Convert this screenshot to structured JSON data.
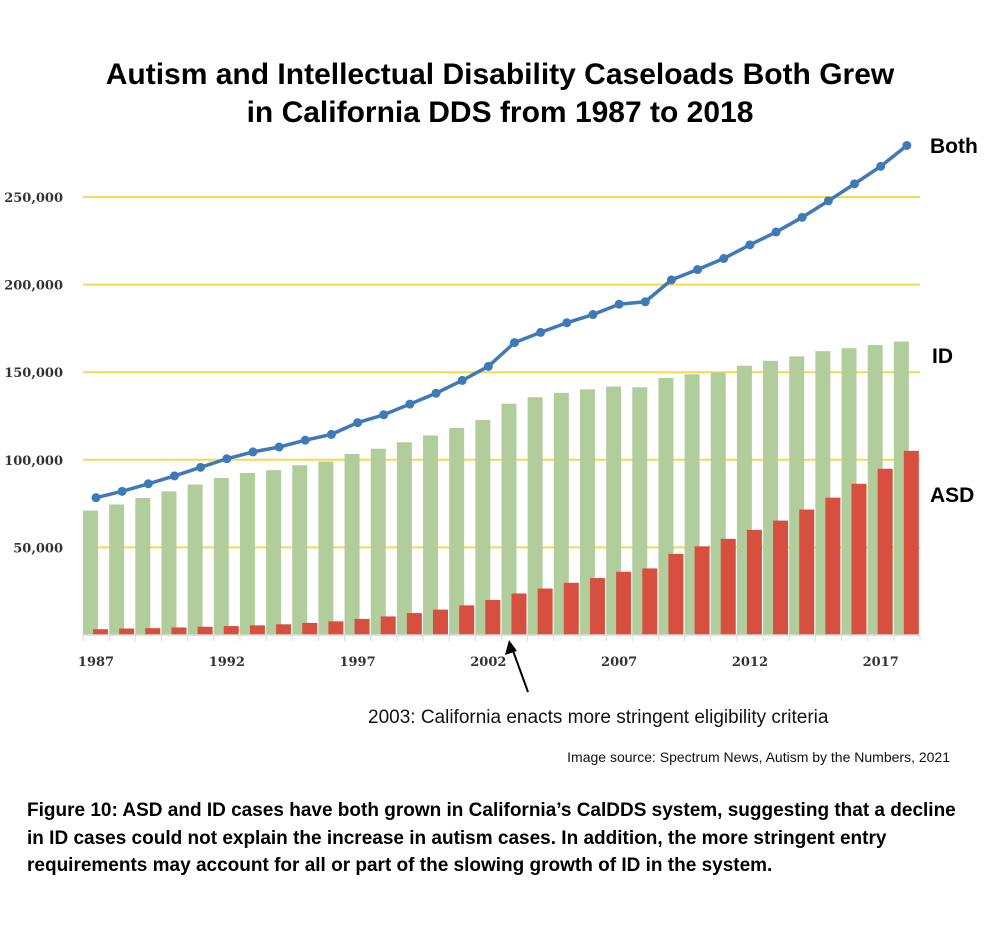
{
  "title_lines": [
    "Autism and Intellectual Disability Caseloads Both Grew",
    "in California DDS from 1987 to 2018"
  ],
  "annotation": "2003: California enacts more stringent eligibility criteria",
  "source": "Image source: Spectrum News, Autism by the Numbers, 2021",
  "caption": "Figure 10: ASD and ID cases have both grown in California’s CalDDS system, suggesting that a decline in ID cases could not explain the increase in autism cases. In addition, the more stringent entry requirements may account for all or part of the slowing growth of ID in the system.",
  "colors": {
    "ID": "#b1cd9c",
    "ASD": "#d64f3f",
    "Both": "#3f7ab8",
    "grid": "#f7d94c"
  },
  "chart_data": {
    "type": "bar",
    "title": "Autism and Intellectual Disability Caseloads Both Grew in California DDS from 1987 to 2018",
    "xlabel": "",
    "ylabel": "",
    "ylim": [
      0,
      250000
    ],
    "grid": true,
    "yticks": [
      50000,
      100000,
      150000,
      200000,
      250000
    ],
    "ytick_labels": [
      "50,000",
      "100,000",
      "150,000",
      "200,000",
      "250,000"
    ],
    "xtick_labels": [
      "1987",
      "1992",
      "1997",
      "2002",
      "2007",
      "2012",
      "2017"
    ],
    "legend_placement": "right (inline labels)",
    "categories": [
      1987,
      1988,
      1989,
      1990,
      1991,
      1992,
      1993,
      1994,
      1995,
      1996,
      1997,
      1998,
      1999,
      2000,
      2001,
      2002,
      2003,
      2004,
      2005,
      2006,
      2007,
      2008,
      2009,
      2010,
      2011,
      2012,
      2013,
      2014,
      2015,
      2016,
      2017,
      2018
    ],
    "series": [
      {
        "name": "ID",
        "type": "bar",
        "values": [
          71000,
          74500,
          78200,
          82000,
          85900,
          89600,
          92500,
          94100,
          96900,
          99000,
          103300,
          106300,
          110000,
          113900,
          118200,
          122700,
          132000,
          135700,
          138200,
          140200,
          141800,
          141400,
          146700,
          148800,
          149800,
          153700,
          156500,
          159000,
          162000,
          163700,
          165500,
          167500
        ]
      },
      {
        "name": "ASD",
        "type": "bar",
        "values": [
          3300,
          3700,
          3900,
          4300,
          4700,
          5100,
          5500,
          6100,
          6900,
          7800,
          9200,
          10600,
          12500,
          14500,
          16900,
          20000,
          23700,
          26500,
          29800,
          32500,
          36100,
          38000,
          46300,
          50600,
          54900,
          60000,
          65300,
          71600,
          78400,
          86300,
          94900,
          105100
        ]
      },
      {
        "name": "Both",
        "type": "line",
        "values": [
          78400,
          82000,
          86300,
          90800,
          95700,
          100600,
          104500,
          107300,
          111200,
          114500,
          121200,
          125700,
          131800,
          138000,
          145300,
          153300,
          166900,
          172700,
          178200,
          182900,
          188800,
          190200,
          202700,
          208600,
          214900,
          222700,
          230000,
          238400,
          247800,
          257500,
          267500,
          279400
        ]
      }
    ]
  }
}
